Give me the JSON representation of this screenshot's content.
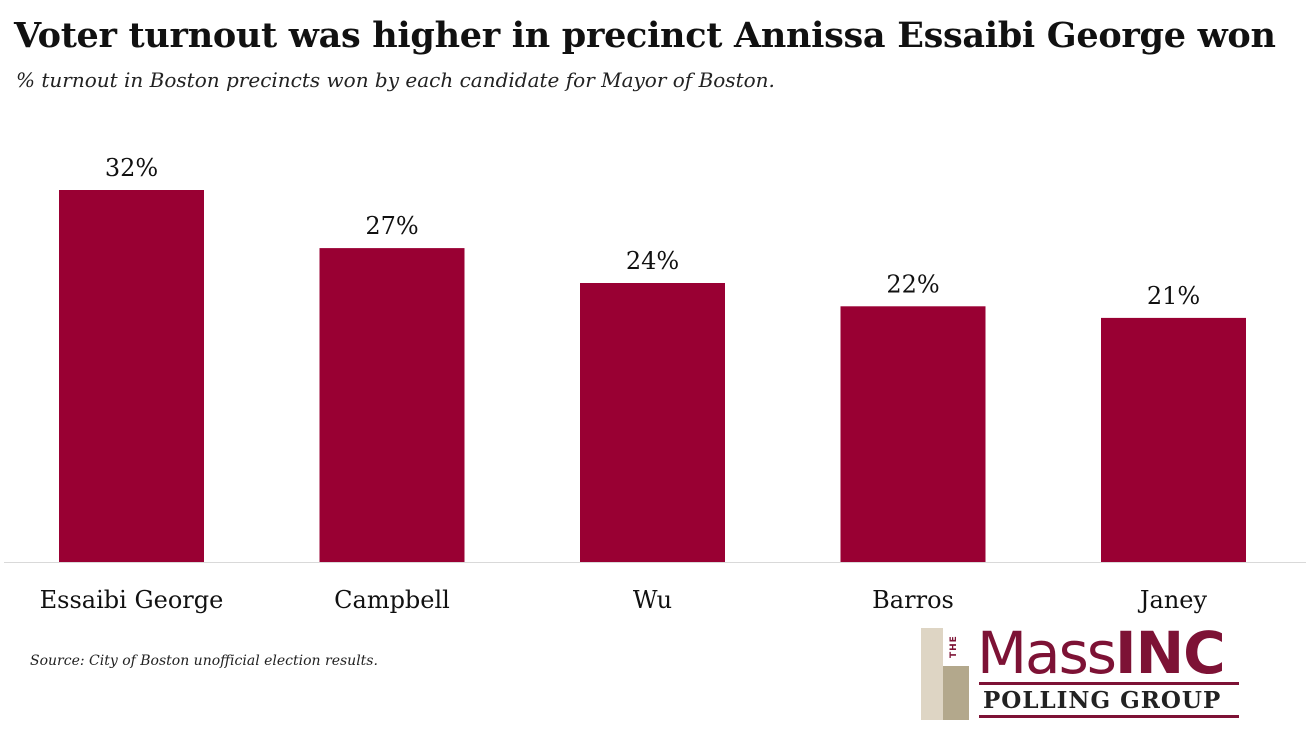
{
  "header": {
    "title": "Voter turnout was higher in precinct Annissa Essaibi George won",
    "subtitle": "% turnout in Boston precincts won by each candidate for Mayor of Boston."
  },
  "chart_data": {
    "type": "bar",
    "title": "Voter turnout was higher in precinct Annissa Essaibi George won",
    "subtitle": "% turnout in Boston precincts won by each candidate for Mayor of Boston.",
    "categories": [
      "Essaibi George",
      "Campbell",
      "Wu",
      "Barros",
      "Janey"
    ],
    "values": [
      32,
      27,
      24,
      22,
      21
    ],
    "value_labels": [
      "32%",
      "27%",
      "24%",
      "22%",
      "21%"
    ],
    "unit": "%",
    "xlabel": "",
    "ylabel": "",
    "ylim": [
      0,
      32
    ],
    "grid": false,
    "legend": "none",
    "bar_color": "#990033",
    "axis_color": "#d9d9d9"
  },
  "footer": {
    "source": "Source: City of Boston unofficial election results."
  },
  "logo": {
    "the": "THE",
    "mass": "Mass",
    "inc": "INC",
    "polling": "POLLING GROUP",
    "brand_color": "#7d1235"
  }
}
